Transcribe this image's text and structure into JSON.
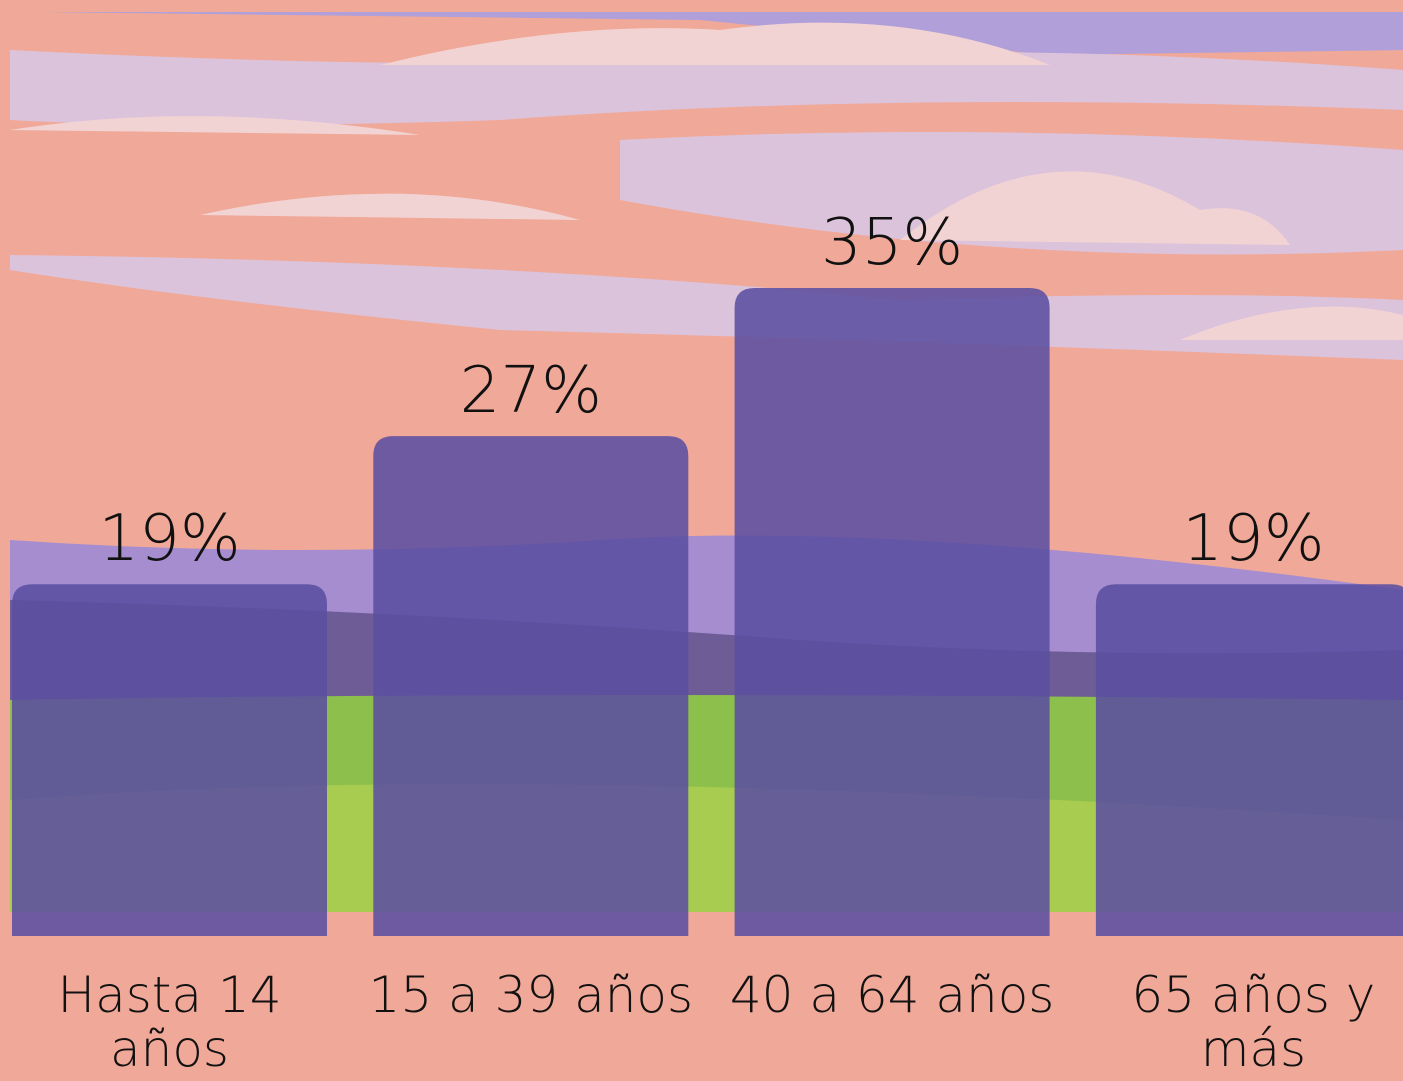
{
  "chart_data": {
    "type": "bar",
    "categories": [
      "Hasta 14 años",
      "15 a 39 años",
      "40 a 64 años",
      "65 años y más"
    ],
    "values": [
      19,
      27,
      35,
      19
    ],
    "value_labels": [
      "19%",
      "27%",
      "35%",
      "19%"
    ],
    "color": "#5b4fa0",
    "ylim": [
      0,
      35
    ]
  }
}
